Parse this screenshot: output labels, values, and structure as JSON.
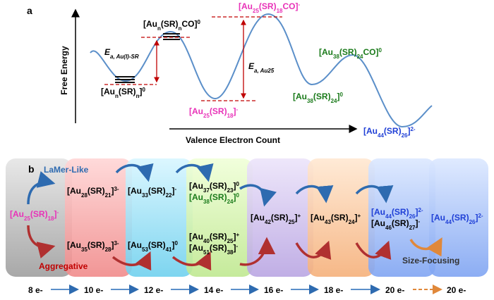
{
  "panel_a": {
    "label": "a",
    "y_axis": "Free Energy",
    "x_axis": "Valence Electron Count",
    "species": [
      "[Aun(SR)nCO]0",
      "[Aun(SR)n]0",
      "[Au25(SR)18CO]-",
      "[Au25(SR)18]-",
      "[Au38(SR)24CO]0",
      "[Au38(SR)24]0",
      "[Au44(SR)26]2-"
    ],
    "barriers": [
      "Ea, Au(I)-SR",
      "Ea, Au25"
    ]
  },
  "panel_b": {
    "label": "b",
    "lamer": "LaMer-Like",
    "aggregative": "Aggregative",
    "size_focusing": "Size-Focusing",
    "species": [
      "[Au25(SR)18]-",
      "[Au28(SR)21]3-",
      "[Au33(SR)22]-",
      "[Au37(SR)23]0",
      "[Au38(SR)24]0",
      "[Au35(SR)28]3-",
      "[Au53(SR)41]0",
      "[Au40(SR)25]+",
      "[Au51(SR)38]-",
      "[Au42(SR)25]+",
      "[Au43(SR)24]+",
      "[Au44(SR)26]2-",
      "[Au46(SR)27]-",
      "[Au44(SR)26]2-"
    ],
    "electron_counts": [
      "8 e-",
      "10 e-",
      "12 e-",
      "14 e-",
      "16 e-",
      "18 e-",
      "20 e-",
      "20 e-"
    ]
  }
}
